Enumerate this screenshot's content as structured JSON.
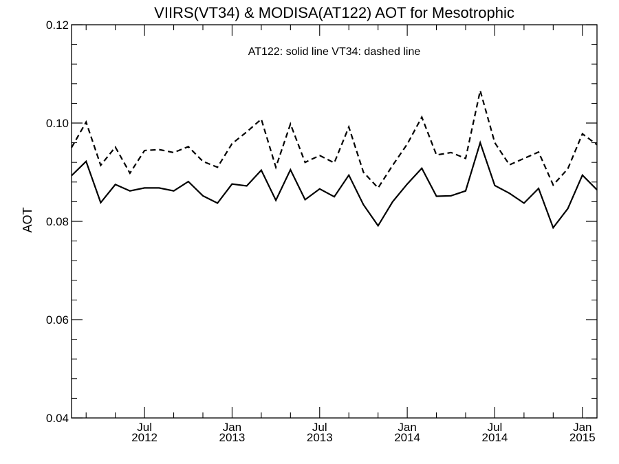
{
  "chart_data": {
    "type": "line",
    "title": "VIIRS(VT34) & MODISA(AT122)  AOT for Mesotrophic",
    "annotation": "AT122: solid line   VT34: dashed line",
    "xlabel": "",
    "ylabel": "AOT",
    "ylim": [
      0.04,
      0.12
    ],
    "y_ticks": [
      "0.04",
      "0.06",
      "0.08",
      "0.10",
      "0.12"
    ],
    "xlim": [
      "2012-02",
      "2015-02"
    ],
    "x_tick_labels": [
      {
        "month": "2012-07",
        "top": "Jul",
        "bottom": "2012"
      },
      {
        "month": "2013-01",
        "top": "Jan",
        "bottom": "2013"
      },
      {
        "month": "2013-07",
        "top": "Jul",
        "bottom": "2013"
      },
      {
        "month": "2014-01",
        "top": "Jan",
        "bottom": "2014"
      },
      {
        "month": "2014-07",
        "top": "Jul",
        "bottom": "2014"
      },
      {
        "month": "2015-01",
        "top": "Jan",
        "bottom": "2015"
      }
    ],
    "grid": false,
    "x": [
      "2012-02",
      "2012-03",
      "2012-04",
      "2012-05",
      "2012-06",
      "2012-07",
      "2012-08",
      "2012-09",
      "2012-10",
      "2012-11",
      "2012-12",
      "2013-01",
      "2013-02",
      "2013-03",
      "2013-04",
      "2013-05",
      "2013-06",
      "2013-07",
      "2013-08",
      "2013-09",
      "2013-10",
      "2013-11",
      "2013-12",
      "2014-01",
      "2014-02",
      "2014-03",
      "2014-04",
      "2014-05",
      "2014-06",
      "2014-07",
      "2014-08",
      "2014-09",
      "2014-10",
      "2014-11",
      "2014-12",
      "2015-01",
      "2015-02"
    ],
    "series": [
      {
        "name": "AT122",
        "style": "solid",
        "color": "#000000",
        "values": [
          0.0893,
          0.0922,
          0.0838,
          0.0875,
          0.0862,
          0.0868,
          0.0868,
          0.0862,
          0.0881,
          0.0852,
          0.0837,
          0.0876,
          0.0872,
          0.0904,
          0.0843,
          0.0905,
          0.0844,
          0.0866,
          0.085,
          0.0894,
          0.0834,
          0.0791,
          0.084,
          0.0876,
          0.0908,
          0.0851,
          0.0852,
          0.0862,
          0.096,
          0.0873,
          0.0857,
          0.0837,
          0.0867,
          0.0787,
          0.0826,
          0.0894,
          0.0864
        ]
      },
      {
        "name": "VT34",
        "style": "dashed",
        "color": "#000000",
        "values": [
          0.095,
          0.1002,
          0.0914,
          0.0951,
          0.0898,
          0.0944,
          0.0946,
          0.094,
          0.0952,
          0.0922,
          0.091,
          0.0958,
          0.0982,
          0.1008,
          0.091,
          0.0998,
          0.092,
          0.0934,
          0.0919,
          0.0992,
          0.09,
          0.0868,
          0.0914,
          0.0957,
          0.1012,
          0.0935,
          0.094,
          0.0928,
          0.1066,
          0.096,
          0.0915,
          0.0928,
          0.0941,
          0.0874,
          0.0907,
          0.0978,
          0.0956
        ]
      }
    ]
  }
}
